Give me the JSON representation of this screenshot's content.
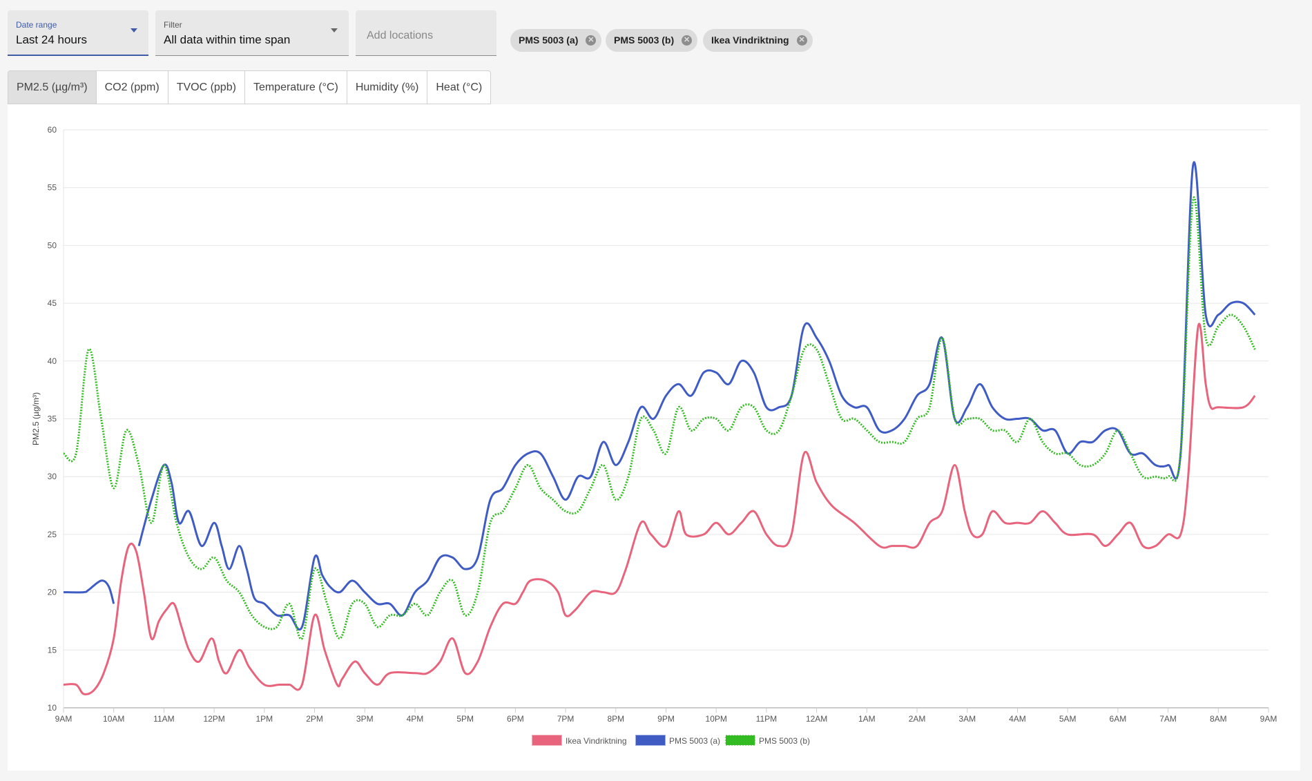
{
  "controls": {
    "date_range": {
      "label": "Date range",
      "value": "Last 24 hours"
    },
    "filter": {
      "label": "Filter",
      "value": "All data within time span"
    },
    "locations": {
      "placeholder": "Add locations"
    },
    "chips": [
      "PMS 5003 (a)",
      "PMS 5003 (b)",
      "Ikea Vindriktning"
    ]
  },
  "tabs": [
    "PM2.5 (µg/m³)",
    "CO2 (ppm)",
    "TVOC (ppb)",
    "Temperature (°C)",
    "Humidity (%)",
    "Heat (°C)"
  ],
  "active_tab": 0,
  "chart_data": {
    "type": "line",
    "title": "",
    "xlabel": "",
    "ylabel": "PM2.5 (µg/m³)",
    "ylim": [
      10,
      60
    ],
    "yticks": [
      10,
      15,
      20,
      25,
      30,
      35,
      40,
      45,
      50,
      55,
      60
    ],
    "xlim_hours": [
      0,
      24
    ],
    "xticks": [
      "9AM",
      "10AM",
      "11AM",
      "12PM",
      "1PM",
      "2PM",
      "3PM",
      "4PM",
      "5PM",
      "6PM",
      "7PM",
      "8PM",
      "9PM",
      "10PM",
      "11PM",
      "12AM",
      "1AM",
      "2AM",
      "3AM",
      "4AM",
      "5AM",
      "6AM",
      "7AM",
      "8AM",
      "9AM"
    ],
    "grid": true,
    "legend_position": "bottom",
    "series": [
      {
        "name": "Ikea Vindriktning",
        "color": "#e8647c",
        "style": "solid",
        "x": [
          0,
          0.25,
          0.4,
          0.6,
          0.8,
          1.0,
          1.15,
          1.3,
          1.45,
          1.6,
          1.75,
          1.9,
          2.05,
          2.2,
          2.35,
          2.5,
          2.7,
          2.95,
          3.1,
          3.25,
          3.5,
          3.7,
          4.0,
          4.3,
          4.5,
          4.75,
          5.0,
          5.2,
          5.45,
          5.55,
          5.8,
          6.0,
          6.25,
          6.5,
          7.0,
          7.25,
          7.5,
          7.75,
          8.0,
          8.25,
          8.5,
          8.75,
          9.0,
          9.15,
          9.3,
          9.6,
          9.85,
          10.0,
          10.2,
          10.5,
          10.75,
          11.0,
          11.2,
          11.5,
          11.7,
          12.0,
          12.25,
          12.4,
          12.75,
          13.0,
          13.25,
          13.5,
          13.75,
          14.0,
          14.25,
          14.5,
          14.75,
          15.0,
          15.3,
          15.75,
          16.25,
          16.5,
          16.75,
          17.0,
          17.25,
          17.5,
          17.75,
          17.95,
          18.1,
          18.3,
          18.5,
          18.75,
          19.0,
          19.25,
          19.5,
          19.75,
          20.0,
          20.5,
          20.75,
          21.0,
          21.25,
          21.5,
          21.75,
          22.0,
          22.25,
          22.4,
          22.6,
          22.75,
          22.85,
          23.0,
          23.5,
          23.73
        ],
        "y": [
          12,
          12,
          11.2,
          11.5,
          13,
          16,
          21,
          24,
          23.5,
          20,
          16,
          17.5,
          18.5,
          19,
          17,
          15,
          14,
          16,
          14,
          13,
          15,
          13.5,
          12,
          12,
          12,
          12,
          18,
          15,
          12,
          12.5,
          14,
          13,
          12,
          13,
          13,
          13,
          14,
          16,
          13,
          14,
          17,
          19,
          19,
          20,
          21,
          21,
          20,
          18,
          18.5,
          20,
          20,
          20,
          22,
          26,
          25,
          24,
          27,
          25,
          25,
          26,
          25,
          26,
          27,
          25,
          24,
          25,
          32,
          29.5,
          27.5,
          26,
          24,
          24,
          24,
          24,
          26,
          27,
          31,
          27,
          25,
          25,
          27,
          26,
          26,
          26,
          27,
          26,
          25,
          25,
          24,
          25,
          26,
          24,
          24,
          25,
          25,
          30,
          43,
          38,
          36,
          36,
          36,
          37
        ]
      },
      {
        "name": "PMS 5003 (a)",
        "color": "#3f5bc4",
        "style": "solid",
        "x": [
          0,
          0.4,
          0.5,
          0.75,
          0.9,
          1.0,
          1.25,
          1.5,
          1.75,
          2.0,
          2.15,
          2.3,
          2.5,
          2.75,
          3.0,
          3.15,
          3.3,
          3.5,
          3.65,
          3.8,
          4.0,
          4.25,
          4.5,
          4.75,
          5.0,
          5.15,
          5.3,
          5.5,
          5.75,
          6.0,
          6.25,
          6.5,
          6.75,
          7.0,
          7.25,
          7.5,
          7.75,
          8.0,
          8.25,
          8.5,
          8.75,
          9.0,
          9.25,
          9.5,
          9.75,
          10.0,
          10.25,
          10.5,
          10.75,
          11.0,
          11.25,
          11.5,
          11.75,
          12.0,
          12.25,
          12.5,
          12.75,
          13.0,
          13.25,
          13.5,
          13.75,
          14.0,
          14.25,
          14.5,
          14.75,
          15.0,
          15.25,
          15.5,
          15.75,
          16.0,
          16.25,
          16.5,
          16.75,
          17.0,
          17.25,
          17.5,
          17.75,
          18.0,
          18.25,
          18.5,
          18.75,
          19.0,
          19.25,
          19.5,
          19.75,
          20.0,
          20.25,
          20.5,
          20.75,
          21.0,
          21.25,
          21.5,
          21.75,
          22.0,
          22.25,
          22.5,
          22.75,
          23.0,
          23.25,
          23.5,
          23.73
        ],
        "y": [
          20,
          20,
          20.2,
          21,
          20.5,
          19,
          null,
          24,
          28,
          31,
          29.5,
          26,
          27,
          24,
          26,
          24,
          22,
          24,
          22,
          19.5,
          19,
          18,
          18,
          17,
          23,
          21.5,
          20.5,
          20,
          21,
          20,
          19,
          19,
          18,
          20,
          21,
          23,
          23,
          22,
          23,
          28,
          29,
          31,
          32,
          32,
          30,
          28,
          30,
          30,
          33,
          31,
          33,
          36,
          35,
          37,
          38,
          37,
          39,
          39,
          38,
          40,
          39,
          36,
          36,
          37,
          43,
          42,
          40,
          37,
          36,
          36,
          34,
          34,
          35,
          37,
          38,
          42,
          35,
          36,
          38,
          36,
          35,
          35,
          35,
          34,
          34,
          32,
          33,
          33,
          34,
          34,
          32,
          32,
          31,
          31,
          32,
          57,
          44,
          44,
          45,
          45,
          44
        ]
      },
      {
        "name": "PMS 5003 (b)",
        "color": "#33bb22",
        "style": "dotted",
        "x": [
          0,
          0.25,
          0.5,
          0.75,
          1.0,
          1.25,
          1.5,
          1.75,
          2.0,
          2.25,
          2.5,
          2.75,
          3.0,
          3.25,
          3.5,
          3.75,
          4.0,
          4.25,
          4.5,
          4.75,
          5.0,
          5.25,
          5.5,
          5.75,
          6.0,
          6.25,
          6.5,
          6.75,
          7.0,
          7.25,
          7.5,
          7.75,
          8.0,
          8.25,
          8.5,
          8.75,
          9.0,
          9.25,
          9.5,
          9.75,
          10.0,
          10.25,
          10.5,
          10.75,
          11.0,
          11.25,
          11.5,
          11.75,
          12.0,
          12.25,
          12.5,
          12.75,
          13.0,
          13.25,
          13.5,
          13.75,
          14.0,
          14.25,
          14.5,
          14.75,
          15.0,
          15.25,
          15.5,
          15.75,
          16.0,
          16.25,
          16.5,
          16.75,
          17.0,
          17.25,
          17.5,
          17.75,
          18.0,
          18.25,
          18.5,
          18.75,
          19.0,
          19.25,
          19.5,
          19.75,
          20.0,
          20.25,
          20.5,
          20.75,
          21.0,
          21.25,
          21.5,
          21.75,
          22.0,
          22.25,
          22.5,
          22.75,
          23.0,
          23.25,
          23.5,
          23.73
        ],
        "y": [
          32,
          32,
          41,
          35,
          29,
          34,
          31,
          26,
          31,
          26,
          23,
          22,
          23,
          21,
          20,
          18,
          17,
          17,
          19,
          16,
          22,
          19,
          16,
          19,
          19,
          17,
          18,
          18,
          19,
          18,
          20,
          21,
          18,
          20,
          26,
          27,
          29,
          31,
          29,
          28,
          27,
          27,
          29,
          31,
          28,
          30,
          35,
          34,
          32,
          36,
          34,
          35,
          35,
          34,
          36,
          36,
          34,
          34,
          37,
          41,
          41,
          38,
          35,
          35,
          34,
          33,
          33,
          33,
          35,
          36,
          42,
          35,
          35,
          35,
          34,
          34,
          33,
          35,
          33,
          32,
          32,
          31,
          31,
          32,
          34,
          32,
          30,
          30,
          30,
          32,
          54,
          42,
          43,
          44,
          43,
          41
        ]
      }
    ]
  }
}
